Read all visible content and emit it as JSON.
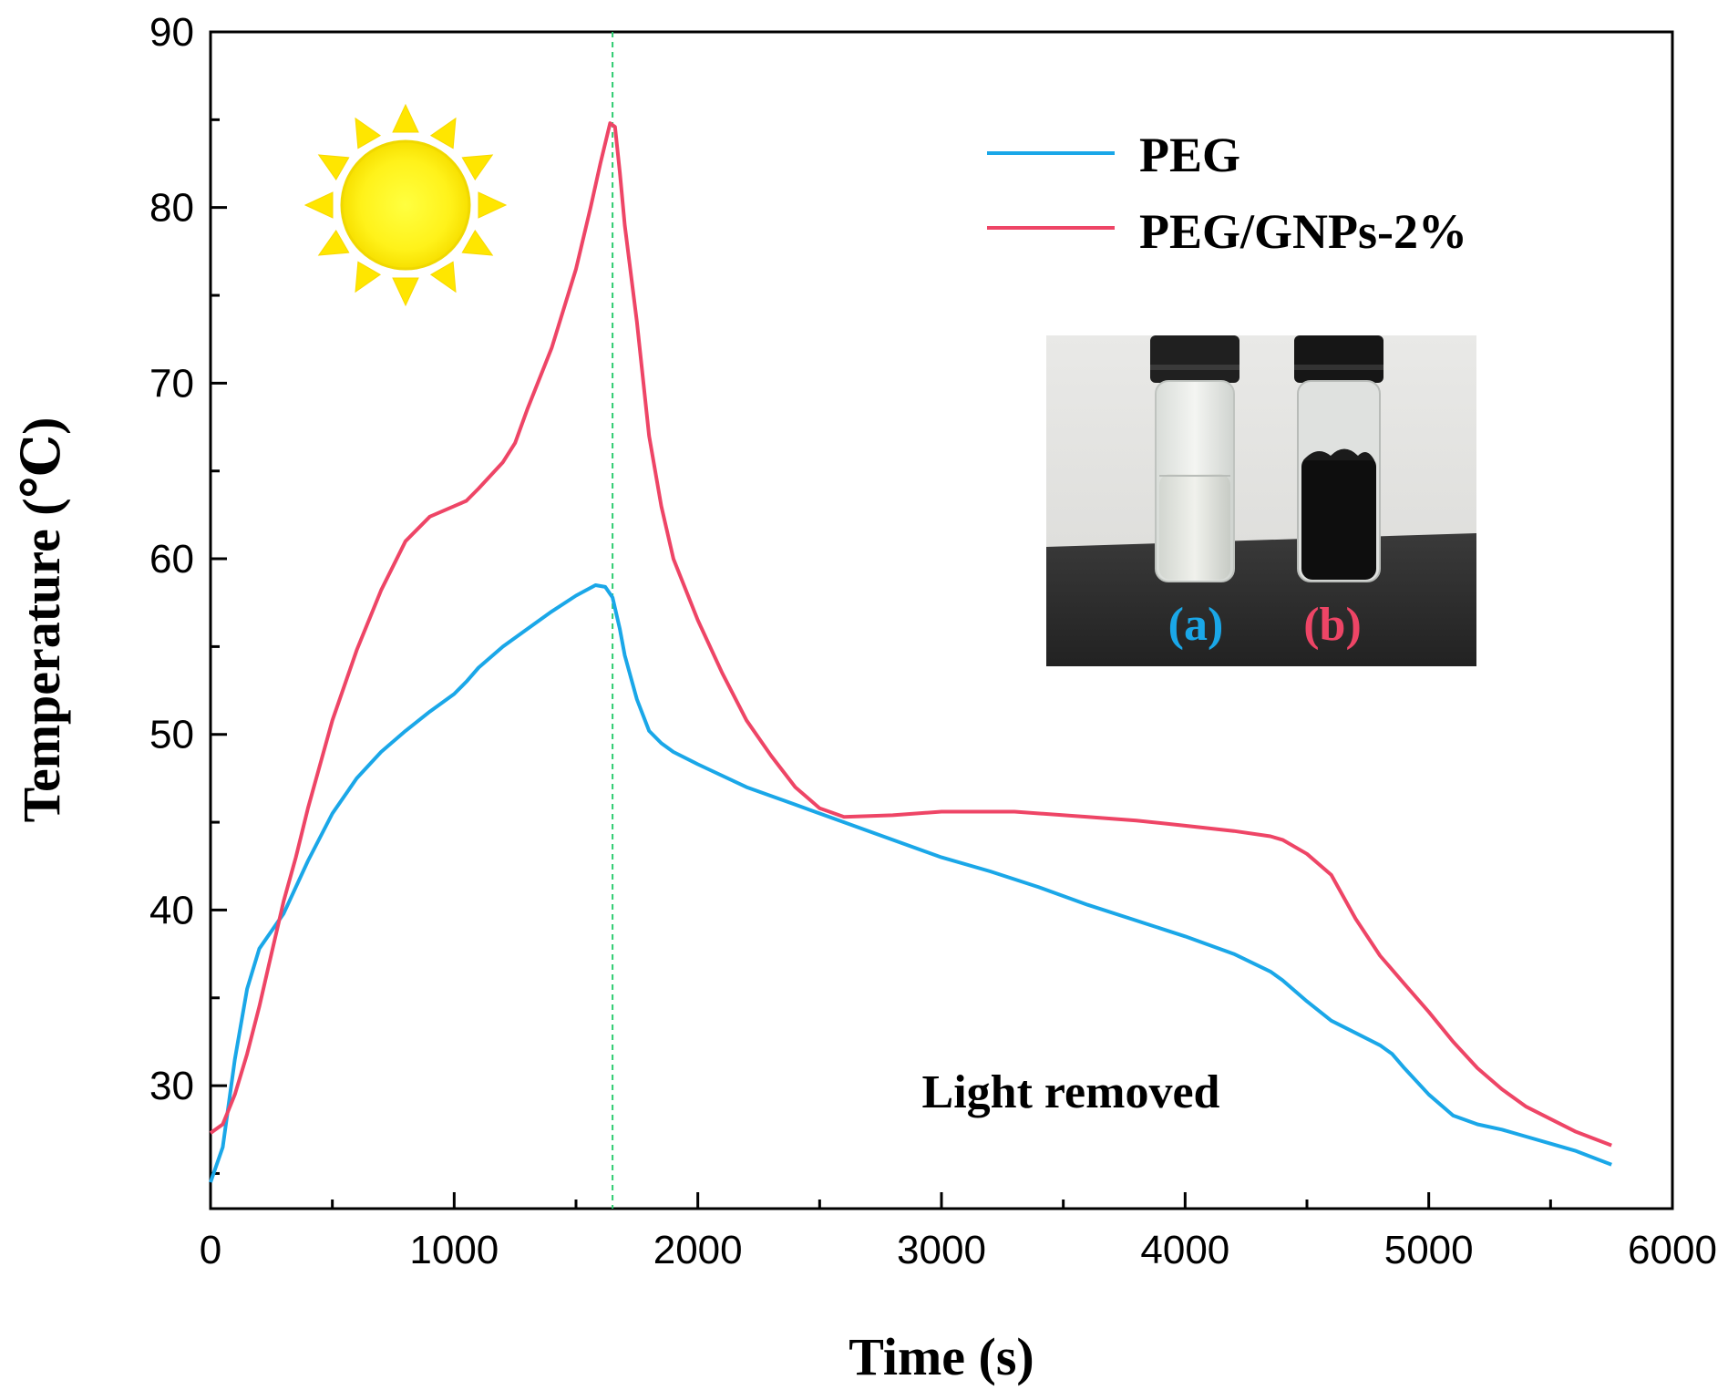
{
  "chart_data": {
    "type": "line",
    "title": "",
    "xlabel": "Time (s)",
    "ylabel": "Temperature (℃)",
    "xlim": [
      0,
      6000
    ],
    "ylim": [
      23,
      90
    ],
    "xticks": [
      0,
      1000,
      2000,
      3000,
      4000,
      5000,
      6000
    ],
    "yticks": [
      30,
      40,
      50,
      60,
      70,
      80,
      90
    ],
    "grid": false,
    "legend_position": "top-right",
    "vline": {
      "x": 1650,
      "style": "dashed",
      "color": "#2ecc71"
    },
    "annotation": "Light removed",
    "series": [
      {
        "name": "PEG",
        "color": "#1aa7e8",
        "x": [
          0,
          50,
          100,
          150,
          200,
          250,
          300,
          400,
          500,
          600,
          700,
          800,
          900,
          1000,
          1050,
          1100,
          1200,
          1300,
          1400,
          1500,
          1580,
          1620,
          1650,
          1680,
          1700,
          1750,
          1800,
          1850,
          1900,
          2000,
          2200,
          2400,
          2600,
          2800,
          3000,
          3200,
          3400,
          3600,
          3800,
          4000,
          4200,
          4350,
          4400,
          4500,
          4600,
          4700,
          4800,
          4850,
          4900,
          5000,
          5100,
          5200,
          5300,
          5400,
          5500,
          5600,
          5750
        ],
        "y": [
          24.5,
          26.5,
          31.5,
          35.5,
          37.8,
          38.8,
          39.8,
          42.8,
          45.5,
          47.5,
          49.0,
          50.2,
          51.3,
          52.3,
          53.0,
          53.8,
          55.0,
          56.0,
          57.0,
          57.9,
          58.5,
          58.4,
          57.8,
          56.0,
          54.5,
          52.0,
          50.2,
          49.5,
          49.0,
          48.3,
          47.0,
          46.0,
          45.0,
          44.0,
          43.0,
          42.2,
          41.3,
          40.3,
          39.4,
          38.5,
          37.5,
          36.5,
          36.0,
          34.8,
          33.7,
          33.0,
          32.3,
          31.8,
          31.0,
          29.5,
          28.3,
          27.8,
          27.5,
          27.1,
          26.7,
          26.3,
          25.5
        ]
      },
      {
        "name": "PEG/GNPs-2%",
        "color": "#ee4566",
        "x": [
          0,
          50,
          100,
          150,
          200,
          250,
          300,
          350,
          400,
          450,
          500,
          600,
          700,
          800,
          900,
          1000,
          1050,
          1100,
          1200,
          1250,
          1300,
          1400,
          1500,
          1560,
          1600,
          1640,
          1660,
          1680,
          1700,
          1750,
          1800,
          1850,
          1900,
          2000,
          2100,
          2200,
          2300,
          2400,
          2500,
          2600,
          2800,
          3000,
          3300,
          3600,
          3800,
          4000,
          4200,
          4350,
          4400,
          4500,
          4600,
          4700,
          4800,
          4900,
          5000,
          5100,
          5200,
          5300,
          5400,
          5500,
          5600,
          5750
        ],
        "y": [
          27.3,
          27.8,
          29.5,
          31.8,
          34.5,
          37.5,
          40.5,
          43.0,
          45.8,
          48.3,
          50.8,
          54.8,
          58.2,
          61.0,
          62.4,
          63.0,
          63.3,
          64.0,
          65.5,
          66.6,
          68.5,
          72.0,
          76.5,
          80.0,
          82.5,
          84.8,
          84.6,
          82.0,
          79.0,
          73.5,
          67.0,
          63.0,
          60.0,
          56.5,
          53.5,
          50.8,
          48.8,
          47.0,
          45.8,
          45.3,
          45.4,
          45.6,
          45.6,
          45.3,
          45.1,
          44.8,
          44.5,
          44.2,
          44.0,
          43.2,
          42.0,
          39.5,
          37.4,
          35.8,
          34.2,
          32.5,
          31.0,
          29.8,
          28.8,
          28.1,
          27.4,
          26.6
        ]
      }
    ],
    "inset": {
      "labels": [
        "(a)",
        "(b)"
      ],
      "label_colors": [
        "#1aa7e8",
        "#ee4566"
      ]
    }
  }
}
